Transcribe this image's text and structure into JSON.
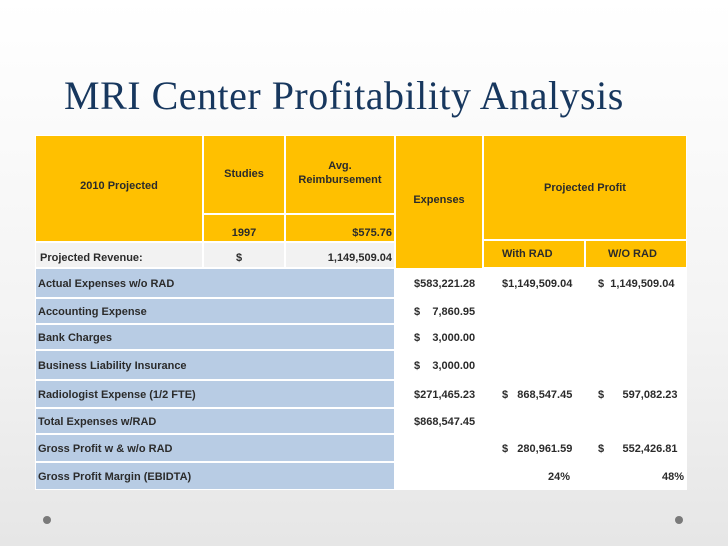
{
  "title": "MRI Center Profitability Analysis",
  "header": {
    "projected_2010": "2010 Projected",
    "studies": "Studies",
    "avg_line1": "Avg.",
    "avg_line2": "Reimbursement",
    "expenses": "Expenses",
    "projected_profit": "Projected Profit",
    "studies_value": "1997",
    "avg_value": "$575.76",
    "revenue_label": "Projected Revenue:",
    "revenue_dollar": "$",
    "revenue_value": "1,149,509.04",
    "with_rad": "With RAD",
    "wo_rad": "W/O RAD"
  },
  "rows": [
    {
      "label": "Actual Expenses w/o RAD",
      "expense": "$583,221.28",
      "with_rad": "$1,149,509.04",
      "wo_rad": "$  1,149,509.04"
    },
    {
      "label": "Accounting Expense",
      "expense": "$    7,860.95",
      "with_rad": "",
      "wo_rad": ""
    },
    {
      "label": "Bank Charges",
      "expense": "$    3,000.00",
      "with_rad": "",
      "wo_rad": ""
    },
    {
      "label": "Business Liability Insurance",
      "expense": "$    3,000.00",
      "with_rad": "",
      "wo_rad": ""
    },
    {
      "label": "Radiologist Expense (1/2 FTE)",
      "expense": "$271,465.23",
      "with_rad": "$   868,547.45",
      "wo_rad": "$      597,082.23"
    },
    {
      "label": "Total Expenses w/RAD",
      "expense": "$868,547.45",
      "with_rad": "",
      "wo_rad": ""
    },
    {
      "label": "Gross Profit w & w/o RAD",
      "expense": "",
      "with_rad": "$   280,961.59",
      "wo_rad": "$      552,426.81"
    },
    {
      "label": "Gross Profit Margin (EBIDTA)",
      "expense": "",
      "with_rad": "24%",
      "wo_rad": "48%"
    }
  ],
  "colors": {
    "header": "#ffc000",
    "label": "#b8cce4",
    "title": "#17375e"
  }
}
